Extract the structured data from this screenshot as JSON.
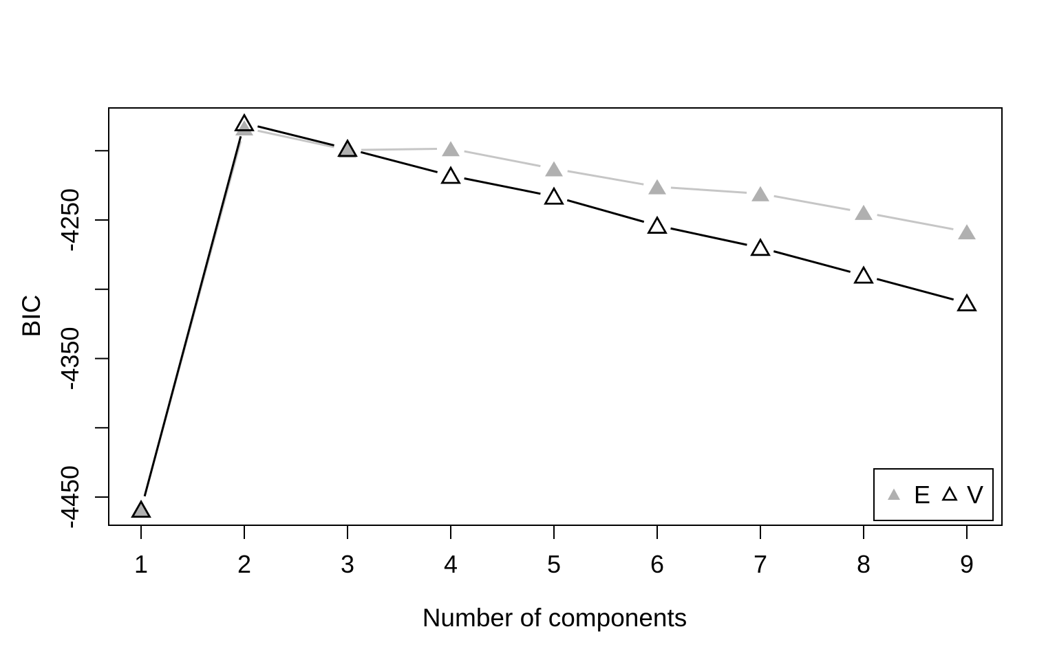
{
  "figure": {
    "background": "#ffffff",
    "description": "BIC model-selection line plot with two model series"
  },
  "chart_data": {
    "type": "line",
    "x": [
      1,
      2,
      3,
      4,
      5,
      6,
      7,
      8,
      9
    ],
    "series": [
      {
        "name": "E",
        "marker": "filled-triangle",
        "marker_color": "#b0b0b0",
        "line_color": "#c6c6c6",
        "values": [
          -4459,
          -4183.5,
          -4199.5,
          -4198.5,
          -4213,
          -4226,
          -4231,
          -4244.5,
          -4258.5
        ]
      },
      {
        "name": "V",
        "marker": "open-triangle",
        "marker_color": "#000000",
        "line_color": "#000000",
        "values": [
          -4459,
          -4180,
          -4198.5,
          -4218,
          -4233,
          -4254,
          -4270,
          -4290,
          -4310
        ]
      }
    ],
    "xlabel": "Number of components",
    "ylabel": "BIC",
    "xlim": [
      0.69,
      9.33
    ],
    "ylim": [
      -4470,
      -4168
    ],
    "x_ticks": [
      1,
      2,
      3,
      4,
      5,
      6,
      7,
      8,
      9
    ],
    "y_ticks": [
      -4200,
      -4250,
      -4300,
      -4350,
      -4400,
      -4450
    ],
    "y_ticks_labeled": [
      -4250,
      -4350,
      -4450
    ],
    "y_tick_labels": [
      "-4250",
      "-4350",
      "-4450"
    ],
    "grid": false,
    "legend_position": "bottom-right",
    "axis_color": "#000000"
  }
}
